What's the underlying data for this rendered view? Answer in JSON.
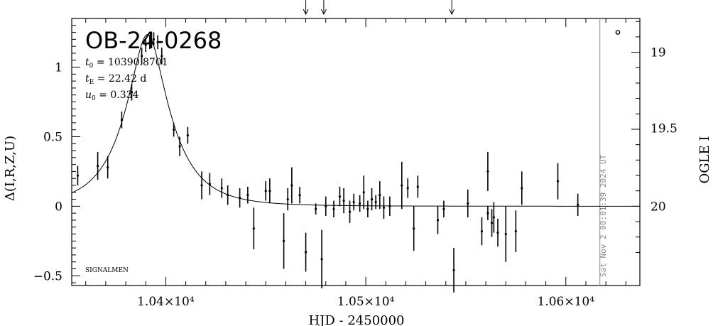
{
  "chart_data": {
    "type": "scatter",
    "title": "OB-24-0268",
    "xlabel": "HJD - 2450000",
    "ylabel_left": "Δ(I,R,Z,U)",
    "ylabel_right": "OGLE I",
    "xlim": [
      10353,
      10637
    ],
    "ylim": [
      -0.57,
      1.35
    ],
    "x_ticks": [
      {
        "value": 10400,
        "label": "1.04×10⁴"
      },
      {
        "value": 10500,
        "label": "1.05×10⁴"
      },
      {
        "value": 10600,
        "label": "1.06×10⁴"
      }
    ],
    "y_ticks_left": [
      {
        "value": -0.5,
        "label": "−0.5"
      },
      {
        "value": 0,
        "label": "0"
      },
      {
        "value": 0.5,
        "label": "0.5"
      },
      {
        "value": 1,
        "label": "1"
      }
    ],
    "y_ticks_right": [
      {
        "value": 1.107,
        "label": "19"
      },
      {
        "value": 0.562,
        "label": "19.5"
      },
      {
        "value": 0.0,
        "label": "20"
      }
    ],
    "params": [
      {
        "sym": "t",
        "sub": "0",
        "text": " = 10390.8701"
      },
      {
        "sym": "t",
        "sub": "E",
        "text": " = 22.42  d"
      },
      {
        "sym": "u",
        "sub": "0",
        "text": " = 0.334"
      }
    ],
    "corner_label": "SIGNALMEN",
    "timestamp": "Sat Nov  2 00:01:39 2024 UT",
    "current_date_line": 10617,
    "arrows_x": [
      10470,
      10479,
      10543
    ],
    "model": {
      "t0": 10390.8701,
      "tE": 22.42,
      "u0": 0.334
    },
    "points": [
      {
        "x": 10356,
        "y": 0.22,
        "e": 0.07
      },
      {
        "x": 10366,
        "y": 0.29,
        "e": 0.1
      },
      {
        "x": 10371,
        "y": 0.28,
        "e": 0.08
      },
      {
        "x": 10378,
        "y": 0.62,
        "e": 0.06
      },
      {
        "x": 10383,
        "y": 0.82,
        "e": 0.06
      },
      {
        "x": 10388,
        "y": 1.08,
        "e": 0.06
      },
      {
        "x": 10390,
        "y": 1.16,
        "e": 0.05
      },
      {
        "x": 10392,
        "y": 1.18,
        "e": 0.05
      },
      {
        "x": 10394,
        "y": 1.2,
        "e": 0.05
      },
      {
        "x": 10396,
        "y": 1.18,
        "e": 0.05
      },
      {
        "x": 10398,
        "y": 1.08,
        "e": 0.06
      },
      {
        "x": 10404,
        "y": 0.55,
        "e": 0.05
      },
      {
        "x": 10407,
        "y": 0.43,
        "e": 0.07
      },
      {
        "x": 10411,
        "y": 0.51,
        "e": 0.06
      },
      {
        "x": 10418,
        "y": 0.15,
        "e": 0.1
      },
      {
        "x": 10422,
        "y": 0.16,
        "e": 0.08
      },
      {
        "x": 10428,
        "y": 0.13,
        "e": 0.07
      },
      {
        "x": 10431,
        "y": 0.08,
        "e": 0.07
      },
      {
        "x": 10437,
        "y": 0.06,
        "e": 0.07
      },
      {
        "x": 10441,
        "y": 0.08,
        "e": 0.06
      },
      {
        "x": 10444,
        "y": -0.16,
        "e": 0.15
      },
      {
        "x": 10450,
        "y": 0.11,
        "e": 0.07
      },
      {
        "x": 10452,
        "y": 0.11,
        "e": 0.09
      },
      {
        "x": 10459,
        "y": -0.25,
        "e": 0.2
      },
      {
        "x": 10461,
        "y": 0.05,
        "e": 0.08
      },
      {
        "x": 10463,
        "y": 0.15,
        "e": 0.13
      },
      {
        "x": 10467,
        "y": 0.08,
        "e": 0.06
      },
      {
        "x": 10470,
        "y": -0.33,
        "e": 0.14
      },
      {
        "x": 10475,
        "y": -0.02,
        "e": 0.04
      },
      {
        "x": 10478,
        "y": -0.38,
        "e": 0.21
      },
      {
        "x": 10480,
        "y": 0.0,
        "e": 0.07
      },
      {
        "x": 10484,
        "y": -0.02,
        "e": 0.06
      },
      {
        "x": 10487,
        "y": 0.07,
        "e": 0.07
      },
      {
        "x": 10489,
        "y": 0.04,
        "e": 0.09
      },
      {
        "x": 10492,
        "y": -0.04,
        "e": 0.08
      },
      {
        "x": 10494,
        "y": 0.03,
        "e": 0.06
      },
      {
        "x": 10497,
        "y": 0.02,
        "e": 0.06
      },
      {
        "x": 10499,
        "y": 0.1,
        "e": 0.12
      },
      {
        "x": 10501,
        "y": -0.02,
        "e": 0.06
      },
      {
        "x": 10503,
        "y": 0.05,
        "e": 0.08
      },
      {
        "x": 10505,
        "y": 0.03,
        "e": 0.05
      },
      {
        "x": 10507,
        "y": 0.08,
        "e": 0.1
      },
      {
        "x": 10509,
        "y": -0.01,
        "e": 0.08
      },
      {
        "x": 10512,
        "y": 0.0,
        "e": 0.07
      },
      {
        "x": 10518,
        "y": 0.15,
        "e": 0.17
      },
      {
        "x": 10521,
        "y": 0.13,
        "e": 0.07
      },
      {
        "x": 10524,
        "y": -0.16,
        "e": 0.16
      },
      {
        "x": 10526,
        "y": 0.14,
        "e": 0.08
      },
      {
        "x": 10536,
        "y": -0.1,
        "e": 0.1
      },
      {
        "x": 10539,
        "y": -0.02,
        "e": 0.06
      },
      {
        "x": 10544,
        "y": -0.46,
        "e": 0.16
      },
      {
        "x": 10551,
        "y": 0.02,
        "e": 0.1
      },
      {
        "x": 10558,
        "y": -0.18,
        "e": 0.1
      },
      {
        "x": 10561,
        "y": -0.05,
        "e": 0.05
      },
      {
        "x": 10561,
        "y": 0.25,
        "e": 0.14
      },
      {
        "x": 10563,
        "y": -0.12,
        "e": 0.1
      },
      {
        "x": 10564,
        "y": -0.08,
        "e": 0.11
      },
      {
        "x": 10566,
        "y": -0.19,
        "e": 0.1
      },
      {
        "x": 10570,
        "y": -0.2,
        "e": 0.2
      },
      {
        "x": 10575,
        "y": -0.18,
        "e": 0.15
      },
      {
        "x": 10578,
        "y": 0.13,
        "e": 0.12
      },
      {
        "x": 10596,
        "y": 0.18,
        "e": 0.13
      },
      {
        "x": 10606,
        "y": 0.01,
        "e": 0.08
      }
    ],
    "legend_mark": {
      "x": 10626,
      "y": 1.25,
      "e": 0.01
    }
  }
}
